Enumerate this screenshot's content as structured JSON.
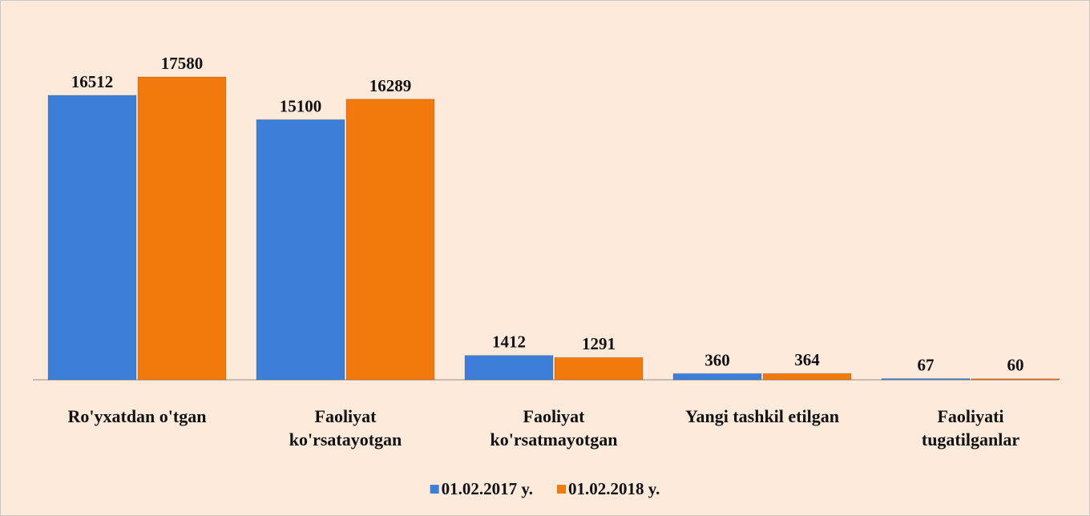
{
  "chart_data": {
    "type": "bar",
    "categories": [
      "Ro'yxatdan o'tgan",
      "Faoliyat ko'rsatayotgan",
      "Faoliyat ko'rsatmayotgan",
      "Yangi tashkil etilgan",
      "Faoliyati tugatilganlar"
    ],
    "series": [
      {
        "name": "01.02.2017 y.",
        "color": "#3d7fd8",
        "values": [
          16512,
          15100,
          1412,
          360,
          67
        ]
      },
      {
        "name": "01.02.2018 y.",
        "color": "#f27a0c",
        "values": [
          17580,
          16289,
          1291,
          364,
          60
        ]
      }
    ],
    "legend": "bottom"
  }
}
